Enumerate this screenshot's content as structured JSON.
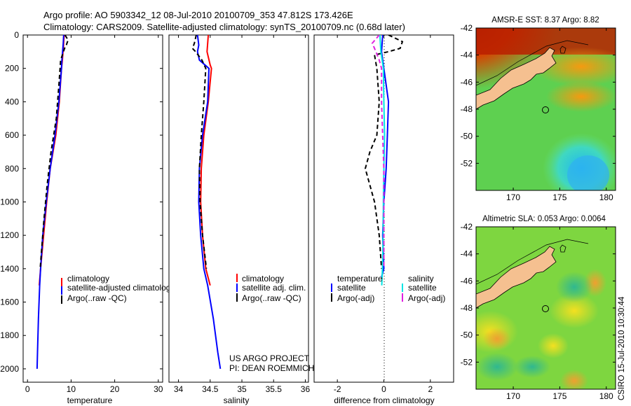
{
  "title": {
    "line1": "Argo profile: AO 5903342_12 08-Jul-2010 20100709_353 47.812S 173.426E",
    "line2": "Climatology: CARS2009. Satellite-adjusted climatology: synTS_20100709.nc (0.68d later)"
  },
  "credit": {
    "project": "US ARGO PROJECT",
    "pi": "PI: DEAN ROEMMICH",
    "stamp": "CSIRO 15-Jul-2010 10:30:44"
  },
  "colors": {
    "climatology": "#ff0000",
    "satellite": "#0000ff",
    "argo": "#000000",
    "salinity_sat": "#00e5e5",
    "salinity_argo": "#e020e0"
  },
  "chart_data": [
    {
      "type": "line",
      "id": "temperature",
      "xlabel": "temperature",
      "xlim": [
        -1,
        31
      ],
      "xticks": [
        0,
        10,
        20,
        30
      ],
      "ylim": [
        2080,
        0
      ],
      "yticks": [
        0,
        200,
        400,
        600,
        800,
        1000,
        1200,
        1400,
        1600,
        1800,
        2000
      ],
      "legend": [
        "climatology",
        "satellite-adjusted climatology",
        "Argo(..raw -QC)"
      ],
      "series": [
        {
          "name": "climatology",
          "color": "#ff0000",
          "dash": false,
          "points": [
            [
              8.4,
              0
            ],
            [
              8.3,
              50
            ],
            [
              8.0,
              150
            ],
            [
              7.8,
              200
            ],
            [
              7.3,
              400
            ],
            [
              6.5,
              600
            ],
            [
              5.2,
              800
            ],
            [
              4.4,
              1000
            ],
            [
              3.7,
              1200
            ],
            [
              3.0,
              1400
            ],
            [
              2.7,
              1500
            ]
          ]
        },
        {
          "name": "satellite-adjusted climatology",
          "color": "#0000ff",
          "dash": false,
          "points": [
            [
              8.3,
              0
            ],
            [
              8.2,
              50
            ],
            [
              7.9,
              150
            ],
            [
              7.8,
              200
            ],
            [
              7.2,
              400
            ],
            [
              6.3,
              600
            ],
            [
              5.2,
              800
            ],
            [
              4.3,
              1000
            ],
            [
              3.5,
              1200
            ],
            [
              3.0,
              1400
            ],
            [
              2.8,
              1500
            ],
            [
              2.5,
              1700
            ],
            [
              2.3,
              1900
            ],
            [
              2.2,
              2000
            ]
          ]
        },
        {
          "name": "Argo(..raw -QC)",
          "color": "#000000",
          "dash": true,
          "points": [
            [
              8.6,
              0
            ],
            [
              9.3,
              30
            ],
            [
              8.9,
              60
            ],
            [
              8.5,
              80
            ],
            [
              7.6,
              150
            ],
            [
              7.2,
              300
            ],
            [
              6.6,
              500
            ],
            [
              5.4,
              700
            ],
            [
              4.5,
              900
            ],
            [
              3.8,
              1100
            ],
            [
              3.2,
              1300
            ],
            [
              2.9,
              1400
            ]
          ]
        }
      ]
    },
    {
      "type": "line",
      "id": "salinity",
      "xlabel": "salinity",
      "xticks": [
        34,
        34.5,
        35,
        35.5,
        36
      ],
      "xticklabels": [
        "34",
        "34.5",
        "35",
        "35.5",
        "36"
      ],
      "xlim": [
        33.85,
        36.05
      ],
      "ylim": [
        2080,
        0
      ],
      "legend": [
        "climatology",
        "satellite adj. clim.",
        "Argo(..raw -QC)"
      ],
      "series": [
        {
          "name": "climatology",
          "color": "#ff0000",
          "dash": false,
          "points": [
            [
              34.47,
              0
            ],
            [
              34.45,
              100
            ],
            [
              34.5,
              180
            ],
            [
              34.52,
              200
            ],
            [
              34.47,
              400
            ],
            [
              34.4,
              600
            ],
            [
              34.36,
              800
            ],
            [
              34.35,
              1000
            ],
            [
              34.38,
              1200
            ],
            [
              34.43,
              1400
            ],
            [
              34.5,
              1500
            ]
          ]
        },
        {
          "name": "satellite adj. clim.",
          "color": "#0000ff",
          "dash": false,
          "points": [
            [
              34.3,
              0
            ],
            [
              34.32,
              60
            ],
            [
              34.3,
              100
            ],
            [
              34.33,
              150
            ],
            [
              34.48,
              200
            ],
            [
              34.46,
              400
            ],
            [
              34.38,
              600
            ],
            [
              34.33,
              800
            ],
            [
              34.32,
              1000
            ],
            [
              34.35,
              1200
            ],
            [
              34.4,
              1400
            ],
            [
              34.46,
              1500
            ],
            [
              34.55,
              1700
            ],
            [
              34.62,
              1900
            ],
            [
              34.66,
              2000
            ]
          ]
        },
        {
          "name": "Argo(..raw -QC)",
          "color": "#000000",
          "dash": true,
          "points": [
            [
              34.28,
              0
            ],
            [
              34.25,
              50
            ],
            [
              34.22,
              80
            ],
            [
              34.27,
              100
            ],
            [
              34.33,
              130
            ],
            [
              34.37,
              150
            ],
            [
              34.43,
              200
            ],
            [
              34.4,
              400
            ],
            [
              34.36,
              600
            ],
            [
              34.33,
              800
            ],
            [
              34.34,
              1000
            ],
            [
              34.38,
              1200
            ],
            [
              34.44,
              1400
            ]
          ]
        }
      ]
    },
    {
      "type": "line",
      "id": "difference",
      "xlabel": "difference from climatology",
      "xlim": [
        -3.0,
        3.0
      ],
      "xticks": [
        -2,
        0,
        2
      ],
      "ylim": [
        2080,
        0
      ],
      "legend_headers": [
        "temperature",
        "salinity"
      ],
      "legend": [
        "satellite",
        "Argo(-adj)",
        "satellite",
        "Argo(-adj)"
      ],
      "series": [
        {
          "name": "temperature satellite",
          "color": "#0000ff",
          "dash": false,
          "points": [
            [
              -0.05,
              0
            ],
            [
              -0.1,
              100
            ],
            [
              0.0,
              200
            ],
            [
              0.1,
              300
            ],
            [
              0.2,
              400
            ],
            [
              0.15,
              600
            ],
            [
              0.1,
              800
            ],
            [
              0.0,
              1000
            ],
            [
              -0.05,
              1200
            ],
            [
              0.0,
              1400
            ],
            [
              -0.1,
              1450
            ]
          ]
        },
        {
          "name": "temperature Argo(-adj)",
          "color": "#000000",
          "dash": true,
          "points": [
            [
              0.2,
              0
            ],
            [
              0.8,
              40
            ],
            [
              0.7,
              80
            ],
            [
              0.2,
              100
            ],
            [
              -0.4,
              120
            ],
            [
              -0.3,
              200
            ],
            [
              -0.2,
              400
            ],
            [
              -0.3,
              600
            ],
            [
              -0.6,
              700
            ],
            [
              -0.8,
              800
            ],
            [
              -0.6,
              900
            ],
            [
              -0.4,
              1000
            ],
            [
              -0.2,
              1200
            ],
            [
              -0.1,
              1400
            ]
          ]
        },
        {
          "name": "salinity satellite",
          "color": "#00e5e5",
          "dash": false,
          "points": [
            [
              -0.17,
              0
            ],
            [
              -0.13,
              100
            ],
            [
              -0.02,
              200
            ],
            [
              0.0,
              400
            ],
            [
              0.03,
              600
            ],
            [
              0.0,
              800
            ],
            [
              -0.02,
              1000
            ],
            [
              -0.03,
              1200
            ],
            [
              -0.06,
              1400
            ],
            [
              -0.09,
              1500
            ]
          ]
        },
        {
          "name": "salinity Argo(-adj)",
          "color": "#e020e0",
          "dash": true,
          "points": [
            [
              -0.2,
              0
            ],
            [
              -0.5,
              50
            ],
            [
              -0.4,
              80
            ],
            [
              -0.2,
              150
            ],
            [
              -0.1,
              200
            ],
            [
              -0.1,
              400
            ],
            [
              -0.05,
              600
            ],
            [
              0.0,
              800
            ],
            [
              0.0,
              1000
            ],
            [
              0.0,
              1200
            ],
            [
              0.0,
              1400
            ]
          ]
        }
      ]
    },
    {
      "type": "heatmap",
      "id": "sst_map",
      "title": "AMSR-E SST: 8.37 Argo: 8.82",
      "xlim": [
        166,
        181
      ],
      "ylim": [
        -54,
        -42
      ],
      "xticks": [
        170,
        175,
        180
      ],
      "yticks": [
        -42,
        -44,
        -46,
        -48,
        -50,
        -52
      ],
      "argo_position": [
        173.426,
        -47.812
      ]
    },
    {
      "type": "heatmap",
      "id": "sla_map",
      "title": "Altimetric SLA: 0.053 Argo: 0.0064",
      "xlim": [
        166,
        181
      ],
      "ylim": [
        -54,
        -42
      ],
      "xticks": [
        170,
        175,
        180
      ],
      "yticks": [
        -42,
        -44,
        -46,
        -48,
        -50,
        -52
      ],
      "argo_position": [
        173.426,
        -47.812
      ]
    }
  ]
}
